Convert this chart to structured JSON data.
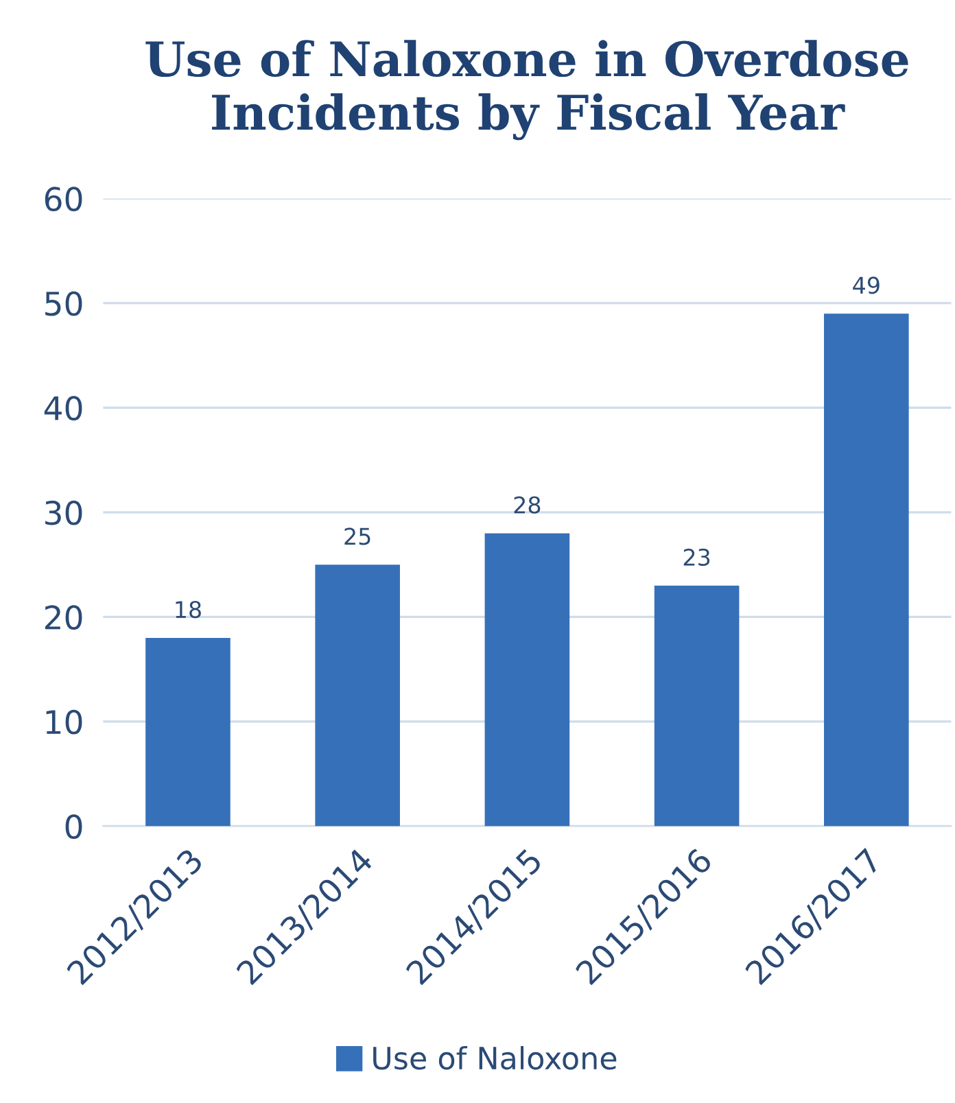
{
  "chart_data": {
    "type": "bar",
    "title": "Use of Naloxone in Overdose Incidents by Fiscal Year",
    "categories": [
      "2012/2013",
      "2013/2014",
      "2014/2015",
      "2015/2016",
      "2016/2017"
    ],
    "series": [
      {
        "name": "Use of Naloxone",
        "color": "#3670b8",
        "values": [
          18,
          25,
          28,
          23,
          49
        ]
      }
    ],
    "ylim": [
      0,
      60
    ],
    "yticks": [
      0,
      10,
      20,
      30,
      40,
      50,
      60
    ],
    "grid": "y",
    "legend": "bottom",
    "data_labels": true
  }
}
